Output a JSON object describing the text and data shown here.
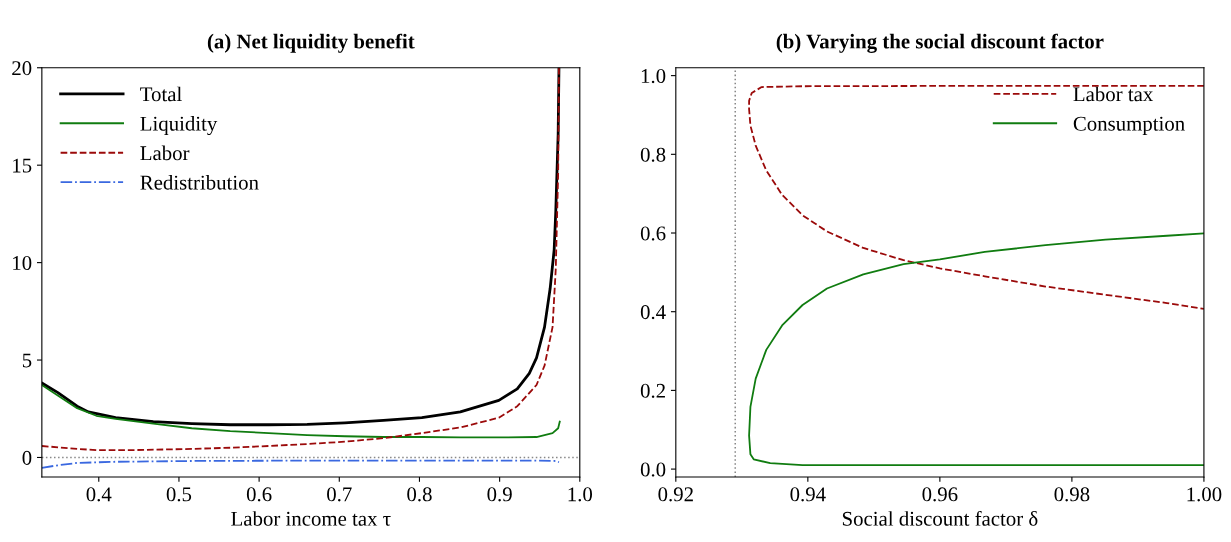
{
  "chart_data": [
    {
      "type": "line",
      "title": "(a) Net liquidity benefit",
      "xlabel": "Labor income tax τ",
      "xlim": [
        0.329,
        1.0
      ],
      "xticks": [
        {
          "value": 0.4,
          "label": "0.4"
        },
        {
          "value": 0.5,
          "label": "0.5"
        },
        {
          "value": 0.6,
          "label": "0.6"
        },
        {
          "value": 0.7,
          "label": "0.7"
        },
        {
          "value": 0.8,
          "label": "0.8"
        },
        {
          "value": 0.9,
          "label": "0.9"
        },
        {
          "value": 1.0,
          "label": "1.0"
        }
      ],
      "ylim": [
        -1,
        20
      ],
      "yticks": [
        0,
        5,
        10,
        15,
        20
      ],
      "grid": false,
      "legend": "top left",
      "marker": "none",
      "ref_lines": [
        {
          "axis": "y",
          "value": 0,
          "color": "#888888",
          "line_style": "dotted"
        }
      ],
      "series": [
        {
          "name": "Total",
          "color": "#000000",
          "line_style": "solid",
          "x": [
            0.329,
            0.349,
            0.373,
            0.387,
            0.421,
            0.468,
            0.516,
            0.564,
            0.612,
            0.66,
            0.707,
            0.755,
            0.803,
            0.851,
            0.899,
            0.922,
            0.937,
            0.946,
            0.956,
            0.963,
            0.968,
            0.97,
            0.973,
            0.974
          ],
          "values": [
            3.82,
            3.33,
            2.63,
            2.34,
            2.04,
            1.84,
            1.74,
            1.68,
            1.68,
            1.7,
            1.78,
            1.9,
            2.04,
            2.34,
            2.93,
            3.52,
            4.32,
            5.11,
            6.69,
            8.67,
            10.65,
            12.6,
            16.6,
            20
          ]
        },
        {
          "name": "Liquidity",
          "color": "#107c10",
          "line_style": "solid",
          "x": [
            0.329,
            0.373,
            0.397,
            0.421,
            0.468,
            0.516,
            0.564,
            0.612,
            0.66,
            0.707,
            0.755,
            0.803,
            0.851,
            0.899,
            0.946,
            0.966,
            0.973,
            0.975
          ],
          "values": [
            3.72,
            2.53,
            2.14,
            1.98,
            1.74,
            1.5,
            1.35,
            1.25,
            1.15,
            1.09,
            1.05,
            1.05,
            1.03,
            1.03,
            1.05,
            1.25,
            1.5,
            1.84
          ]
        },
        {
          "name": "Labor",
          "color": "#9b0a0a",
          "line_style": "dashed",
          "x": [
            0.329,
            0.373,
            0.397,
            0.444,
            0.516,
            0.564,
            0.612,
            0.66,
            0.707,
            0.755,
            0.803,
            0.851,
            0.899,
            0.922,
            0.946,
            0.956,
            0.966,
            0.97,
            0.973,
            0.974
          ],
          "values": [
            0.59,
            0.44,
            0.38,
            0.38,
            0.44,
            0.5,
            0.59,
            0.69,
            0.81,
            0.99,
            1.25,
            1.54,
            2.04,
            2.63,
            3.72,
            4.71,
            6.69,
            9.66,
            14.6,
            20
          ]
        },
        {
          "name": "Redistribution",
          "color": "#3a68e0",
          "line_style": "dashdot",
          "x": [
            0.329,
            0.349,
            0.373,
            0.421,
            0.516,
            0.66,
            0.803,
            0.946,
            0.97,
            0.974
          ],
          "values": [
            -0.53,
            -0.4,
            -0.28,
            -0.22,
            -0.18,
            -0.16,
            -0.16,
            -0.16,
            -0.18,
            -0.24
          ]
        }
      ]
    },
    {
      "type": "line",
      "title": "(b) Varying the social discount factor",
      "xlabel": "Social discount factor δ",
      "xlim": [
        0.92,
        1.0
      ],
      "xticks": [
        {
          "value": 0.92,
          "label": "0.92"
        },
        {
          "value": 0.94,
          "label": "0.94"
        },
        {
          "value": 0.96,
          "label": "0.96"
        },
        {
          "value": 0.98,
          "label": "0.98"
        },
        {
          "value": 1.0,
          "label": "1.00"
        }
      ],
      "ylim": [
        -0.02,
        1.02
      ],
      "yticks": [
        {
          "value": 0,
          "label": "0.0"
        },
        {
          "value": 0.2,
          "label": "0.2"
        },
        {
          "value": 0.4,
          "label": "0.4"
        },
        {
          "value": 0.6,
          "label": "0.6"
        },
        {
          "value": 0.8,
          "label": "0.8"
        },
        {
          "value": 1.0,
          "label": "1.0"
        }
      ],
      "grid": false,
      "legend": "top right",
      "marker": "none",
      "ref_lines": [
        {
          "axis": "x",
          "value": 0.929,
          "color": "#888888",
          "line_style": "dotted"
        }
      ],
      "series": [
        {
          "name": "Labor tax",
          "color": "#9b0a0a",
          "line_style": "dashed",
          "x": [
            1.0,
            0.9637,
            0.9392,
            0.933,
            0.9315,
            0.9311,
            0.9311,
            0.9313,
            0.9321,
            0.9337,
            0.9361,
            0.9392,
            0.9429,
            0.9484,
            0.9545,
            0.96,
            0.9668,
            0.976,
            0.9851,
            0.9944,
            1.0
          ],
          "values": [
            0.974,
            0.974,
            0.973,
            0.971,
            0.956,
            0.936,
            0.915,
            0.873,
            0.822,
            0.759,
            0.697,
            0.645,
            0.604,
            0.562,
            0.531,
            0.51,
            0.49,
            0.464,
            0.443,
            0.422,
            0.407
          ]
        },
        {
          "name": "Consumption",
          "color": "#107c10",
          "line_style": "solid",
          "x": [
            1.0,
            0.9392,
            0.9343,
            0.9318,
            0.9313,
            0.9311,
            0.9313,
            0.9321,
            0.9337,
            0.9361,
            0.9392,
            0.9429,
            0.9484,
            0.9545,
            0.96,
            0.9668,
            0.976,
            0.9851,
            0.9944,
            1.0
          ],
          "values": [
            0.01,
            0.01,
            0.015,
            0.025,
            0.038,
            0.085,
            0.158,
            0.23,
            0.303,
            0.365,
            0.417,
            0.459,
            0.495,
            0.521,
            0.533,
            0.552,
            0.569,
            0.583,
            0.593,
            0.599
          ]
        }
      ]
    }
  ]
}
